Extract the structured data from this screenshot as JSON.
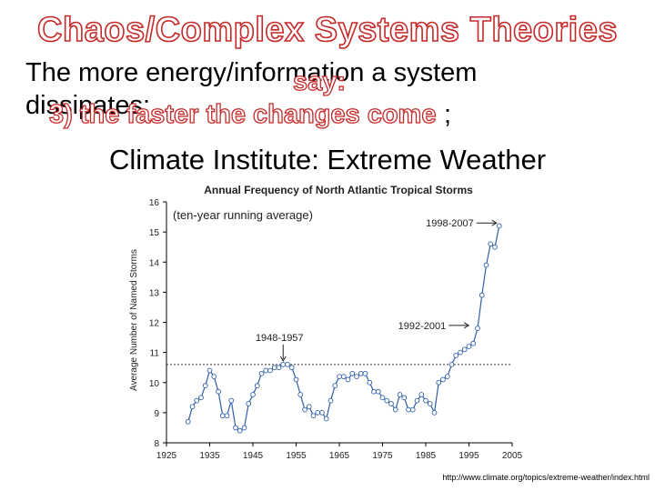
{
  "slide": {
    "title": "Chaos/Complex Systems Theories",
    "line1": "The more energy/information a system",
    "line2": "dissipates:",
    "overlay_word": "say:",
    "overlay_phrase": "3) the faster the changes come",
    "semicolon": ";",
    "subtitle": "Climate Institute: Extreme Weather",
    "source_url": "http://www.climate.org/topics/extreme-weather/index.html"
  },
  "chart_data": {
    "type": "line",
    "title": "Annual Frequency of North Atlantic Tropical Storms",
    "inset_label": "(ten-year running average)",
    "xlabel": "",
    "ylabel": "Average Number of Named Storms",
    "xlim": [
      1925,
      2005
    ],
    "ylim": [
      8,
      16
    ],
    "x_ticks": [
      1925,
      1935,
      1945,
      1955,
      1965,
      1975,
      1985,
      1995,
      2005
    ],
    "y_ticks": [
      8,
      9,
      10,
      11,
      12,
      13,
      14,
      15,
      16
    ],
    "reference_line": 10.6,
    "annotations": [
      {
        "text": "1948-1957",
        "x": 1952,
        "y": 10.6
      },
      {
        "text": "1992-2001",
        "x": 1996,
        "y": 11.9
      },
      {
        "text": "1998-2007",
        "x": 2002,
        "y": 15.3
      }
    ],
    "series": [
      {
        "name": "ten-year running average",
        "x": [
          1930,
          1931,
          1932,
          1933,
          1934,
          1935,
          1936,
          1937,
          1938,
          1939,
          1940,
          1941,
          1942,
          1943,
          1944,
          1945,
          1946,
          1947,
          1948,
          1949,
          1950,
          1951,
          1952,
          1953,
          1954,
          1955,
          1956,
          1957,
          1958,
          1959,
          1960,
          1961,
          1962,
          1963,
          1964,
          1965,
          1966,
          1967,
          1968,
          1969,
          1970,
          1971,
          1972,
          1973,
          1974,
          1975,
          1976,
          1977,
          1978,
          1979,
          1980,
          1981,
          1982,
          1983,
          1984,
          1985,
          1986,
          1987,
          1988,
          1989,
          1990,
          1991,
          1992,
          1993,
          1994,
          1995,
          1996,
          1997,
          1998,
          1999,
          2000,
          2001,
          2002
        ],
        "values": [
          8.7,
          9.2,
          9.4,
          9.5,
          9.9,
          10.4,
          10.2,
          9.7,
          8.9,
          8.9,
          9.4,
          8.5,
          8.4,
          8.5,
          9.3,
          9.6,
          9.9,
          10.3,
          10.4,
          10.4,
          10.5,
          10.5,
          10.6,
          10.6,
          10.5,
          10.1,
          9.6,
          9.1,
          9.2,
          8.9,
          9.0,
          9.0,
          8.8,
          9.4,
          9.9,
          10.2,
          10.2,
          10.1,
          10.3,
          10.2,
          10.3,
          10.3,
          10.0,
          9.7,
          9.7,
          9.5,
          9.4,
          9.3,
          9.1,
          9.6,
          9.5,
          9.1,
          9.1,
          9.4,
          9.6,
          9.4,
          9.3,
          9.0,
          10.0,
          10.1,
          10.2,
          10.6,
          10.9,
          11.0,
          11.1,
          11.2,
          11.3,
          11.8,
          12.9,
          13.9,
          14.6,
          14.5,
          15.2
        ]
      }
    ]
  }
}
